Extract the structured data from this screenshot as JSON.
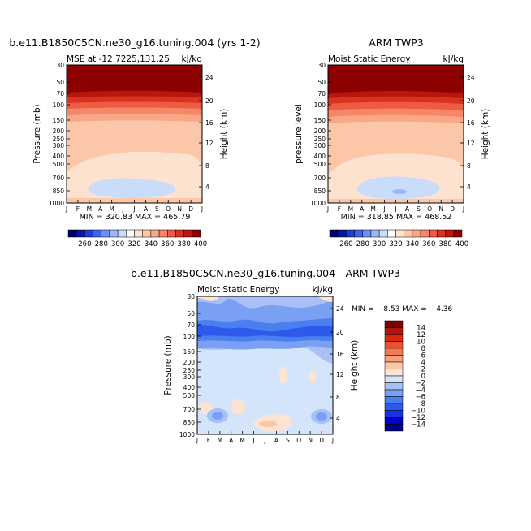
{
  "chart_data": [
    {
      "type": "contour",
      "title": "b.e11.B1850C5CN.ne30_g16.tuning.004 (yrs 1-2)",
      "subtitle_left": "MSE at -12.7225,131.25",
      "subtitle_right": "kJ/kg",
      "ylabel": "Pressure (mb)",
      "ylabel_right": "Height (km)",
      "stats": "MIN = 320.83  MAX = 465.79",
      "x_ticks": [
        "J",
        "F",
        "M",
        "A",
        "M",
        "J",
        "J",
        "A",
        "S",
        "O",
        "N",
        "D",
        "J"
      ],
      "pressure_ticks": [
        "30",
        "50",
        "70",
        "100",
        "150",
        "200",
        "250",
        "300",
        "400",
        "500",
        "700",
        "850",
        "1000"
      ],
      "height_ticks": [
        "4",
        "8",
        "12",
        "16",
        "20",
        "24"
      ],
      "levels": [
        260,
        280,
        300,
        320,
        340,
        360,
        380,
        400
      ],
      "colorbar_labels": [
        "260",
        "280",
        "300",
        "320",
        "340",
        "360",
        "380",
        "400"
      ]
    },
    {
      "type": "contour",
      "title": "ARM TWP3",
      "subtitle_left": "Moist Static Energy",
      "subtitle_right": "kJ/kg",
      "ylabel": "pressure level",
      "ylabel_right": "Height (km)",
      "stats": "MIN = 318.85  MAX = 468.52",
      "x_ticks": [
        "J",
        "F",
        "M",
        "A",
        "M",
        "J",
        "J",
        "A",
        "S",
        "O",
        "N",
        "D",
        "J"
      ],
      "pressure_ticks": [
        "30",
        "50",
        "70",
        "100",
        "150",
        "200",
        "250",
        "300",
        "400",
        "500",
        "700",
        "850",
        "1000"
      ],
      "height_ticks": [
        "4",
        "8",
        "12",
        "16",
        "20",
        "24"
      ],
      "levels": [
        260,
        280,
        300,
        320,
        340,
        360,
        380,
        400
      ],
      "colorbar_labels": [
        "260",
        "280",
        "300",
        "320",
        "340",
        "360",
        "380",
        "400"
      ]
    },
    {
      "type": "contour",
      "title": "b.e11.B1850C5CN.ne30_g16.tuning.004 - ARM TWP3",
      "subtitle_left": "Moist Static Energy",
      "subtitle_right": "kJ/kg",
      "ylabel": "Pressure (mb)",
      "ylabel_right": "Height (km)",
      "stats": "MIN =   -8.53 MAX =    4.36",
      "x_ticks": [
        "J",
        "F",
        "M",
        "A",
        "M",
        "J",
        "J",
        "A",
        "S",
        "O",
        "N",
        "D",
        "J"
      ],
      "pressure_ticks": [
        "30",
        "50",
        "70",
        "100",
        "150",
        "200",
        "250",
        "300",
        "400",
        "500",
        "700",
        "850",
        "1000"
      ],
      "height_ticks": [
        "4",
        "8",
        "12",
        "16",
        "20",
        "24"
      ],
      "levels": [
        -14,
        -12,
        -10,
        -8,
        -6,
        -4,
        -2,
        0,
        2,
        4,
        6,
        8,
        10,
        12,
        14
      ],
      "colorbar_labels": [
        "14",
        "12",
        "10",
        "8",
        "6",
        "4",
        "2",
        "0",
        "−2",
        "−4",
        "−6",
        "−8",
        "−10",
        "−12",
        "−14"
      ]
    }
  ],
  "colors": {
    "mse_scale": [
      "#00006b",
      "#0a14a8",
      "#1e3cd6",
      "#3c64f0",
      "#6e8ef5",
      "#9cb6f7",
      "#c9dcfa",
      "#ffffff",
      "#fde2d0",
      "#fbc7a8",
      "#f9a886",
      "#f6866a",
      "#ee5b44",
      "#d9321f",
      "#b8170f",
      "#8c0000"
    ],
    "diff_scale": [
      "#000080",
      "#0000cd",
      "#1432e6",
      "#2d5aeb",
      "#4a7ff0",
      "#7aa0f4",
      "#a8c0f6",
      "#d4e4fb",
      "#fde4d2",
      "#fbc6a6",
      "#f8a07c",
      "#f47a54",
      "#ef4f2d",
      "#d52d0c",
      "#b0160a",
      "#800000"
    ]
  }
}
